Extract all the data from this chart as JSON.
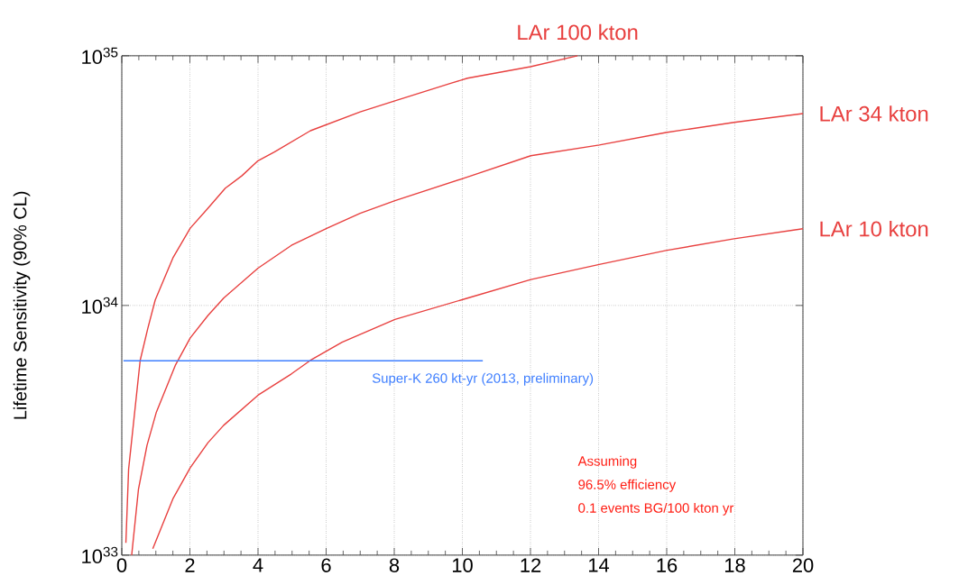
{
  "chart_data": {
    "type": "line",
    "ylabel": "Lifetime Sensitivity (90% CL)",
    "log": "y",
    "grid": true,
    "marker": "none",
    "line_style": "solid",
    "xlim": [
      0,
      20
    ],
    "xticks": [
      0,
      2,
      4,
      6,
      8,
      10,
      12,
      14,
      16,
      18,
      20
    ],
    "ylim": [
      1e+33,
      1e+35
    ],
    "yticks": [
      {
        "value": 1e+33,
        "label": "10$^{33}$"
      },
      {
        "value": 1e+34,
        "label": "10$^{34}$"
      },
      {
        "value": 1e+35,
        "label": "10$^{35}$"
      }
    ],
    "series": [
      {
        "name": "LAr 100 kton",
        "color": "#e8403f",
        "x": [
          0.12,
          0.2,
          0.54,
          0.76,
          0.98,
          1.5,
          2.01,
          2.53,
          3.04,
          3.53,
          4.0,
          4.48,
          5.54,
          7.0,
          8.04,
          9.66,
          10.15,
          12.0,
          13.38
        ],
        "values": [
          1.12e+33,
          2.21e+33,
          6.03e+33,
          8.05e+33,
          1.05e+34,
          1.55e+34,
          2.04e+34,
          2.45e+34,
          2.95e+34,
          3.31e+34,
          3.8e+34,
          4.12e+34,
          5.01e+34,
          5.96e+34,
          6.61e+34,
          7.76e+34,
          8.13e+34,
          9.04e+34,
          1e+35
        ]
      },
      {
        "name": "LAr 34 kton",
        "color": "#e8403f",
        "x": [
          0.29,
          0.49,
          0.74,
          1.01,
          1.57,
          2.01,
          2.53,
          2.99,
          4.0,
          4.98,
          6.03,
          7.0,
          8.02,
          10.15,
          12.01,
          14.02,
          15.98,
          17.98,
          20
        ],
        "values": [
          1e+33,
          1.84e+33,
          2.75e+33,
          3.72e+33,
          5.75e+33,
          7.41e+33,
          9.12e+33,
          1.07e+34,
          1.41e+34,
          1.74e+34,
          2.04e+34,
          2.34e+34,
          2.63e+34,
          3.27e+34,
          3.98e+34,
          4.39e+34,
          4.93e+34,
          5.41e+34,
          5.87e+34
        ]
      },
      {
        "name": "LAr 10 kton",
        "color": "#e8403f",
        "x": [
          0.91,
          1.5,
          2.01,
          2.53,
          2.99,
          4.0,
          4.98,
          5.54,
          6.47,
          8.02,
          10.15,
          12.01,
          14.02,
          15.98,
          17.98,
          20
        ],
        "values": [
          1.06e+33,
          1.68e+33,
          2.24e+33,
          2.82e+33,
          3.31e+33,
          4.37e+33,
          5.32e+33,
          6.03e+33,
          7.13e+33,
          8.79e+33,
          1.07e+34,
          1.27e+34,
          1.46e+34,
          1.66e+34,
          1.85e+34,
          2.03e+34
        ]
      },
      {
        "name": "Super-K 260 kt-yr (2013, preliminary)",
        "color": "#3f7fff",
        "x": [
          0.05,
          10.6
        ],
        "values": [
          6e+33,
          6e+33
        ]
      }
    ],
    "annotations": [
      "Assuming",
      "96.5% efficiency",
      "0.1 events BG/100 kton yr"
    ]
  }
}
